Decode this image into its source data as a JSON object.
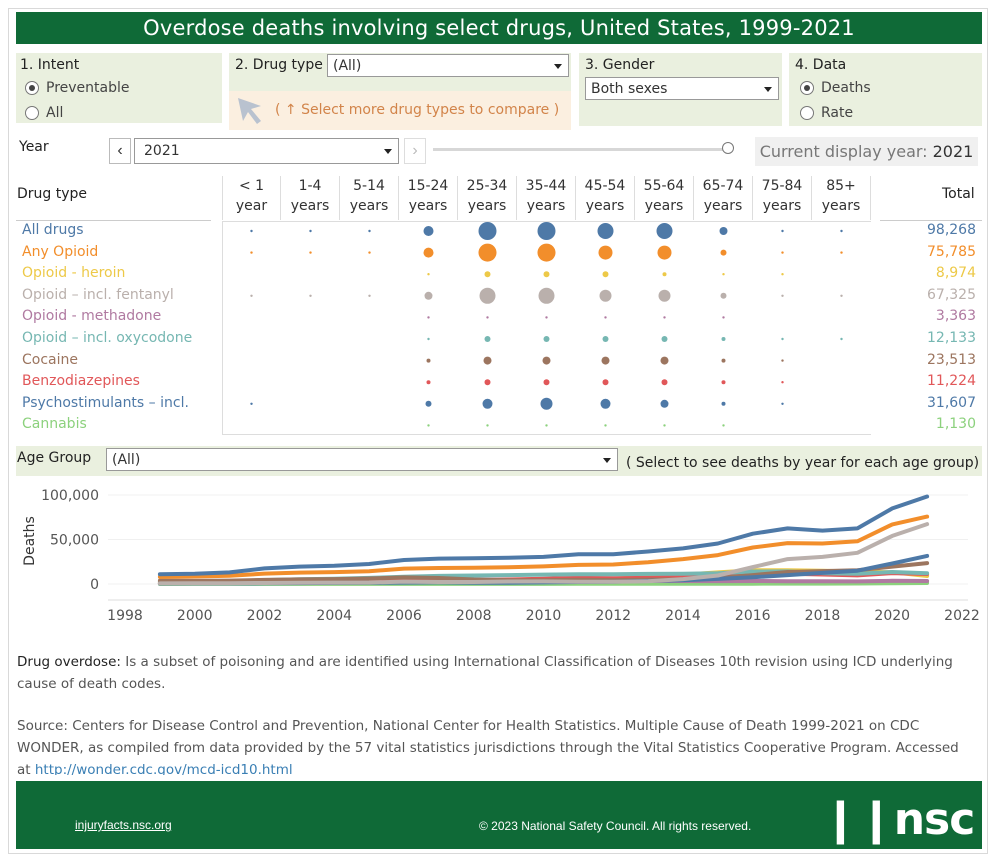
{
  "title": "Overdose deaths involving select drugs, United States, 1999-2021",
  "intent": {
    "label": "1. Intent",
    "options": [
      "Preventable",
      "All"
    ],
    "selected": "Preventable"
  },
  "drug_type_filter": {
    "label": "2. Drug type",
    "value": "(All)",
    "hint": "( ↑ Select more drug types to compare )"
  },
  "gender": {
    "label": "3. Gender",
    "value": "Both sexes"
  },
  "data_measure": {
    "label": "4. Data",
    "options": [
      "Deaths",
      "Rate"
    ],
    "selected": "Deaths"
  },
  "year_control": {
    "label": "Year",
    "value": "2021",
    "current_prefix": "Current display year:",
    "current_value": "2021",
    "slider_position": 1.0
  },
  "table": {
    "drug_type_header": "Drug type",
    "total_header": "Total",
    "age_columns": [
      {
        "l1": "< 1 year",
        "l2": ""
      },
      {
        "l1": "1-4",
        "l2": "years"
      },
      {
        "l1": "5-14",
        "l2": "years"
      },
      {
        "l1": "15-24",
        "l2": "years"
      },
      {
        "l1": "25-34",
        "l2": "years"
      },
      {
        "l1": "35-44",
        "l2": "years"
      },
      {
        "l1": "45-54",
        "l2": "years"
      },
      {
        "l1": "55-64",
        "l2": "years"
      },
      {
        "l1": "65-74",
        "l2": "years"
      },
      {
        "l1": "75-84",
        "l2": "years"
      },
      {
        "l1": "85+",
        "l2": "years"
      }
    ],
    "rows": [
      {
        "name": "All drugs",
        "color": "#4e79a7",
        "total": "98,268",
        "sizes": [
          1,
          1,
          1,
          5,
          9,
          9,
          8,
          8,
          4,
          1,
          1
        ]
      },
      {
        "name": "Any Opioid",
        "color": "#f28e2b",
        "total": "75,785",
        "sizes": [
          1,
          1,
          1,
          5,
          9,
          9,
          7,
          7,
          3,
          1,
          1
        ]
      },
      {
        "name": "Opioid - heroin",
        "color": "#edc948",
        "total": "8,974",
        "sizes": [
          0,
          0,
          0,
          1,
          3,
          3,
          3,
          2,
          1,
          1,
          0
        ]
      },
      {
        "name": "Opioid – incl. fentanyl",
        "color": "#bab0ac",
        "total": "67,325",
        "sizes": [
          1,
          1,
          1,
          4,
          8,
          8,
          6,
          6,
          3,
          1,
          1
        ]
      },
      {
        "name": "Opioid - methadone",
        "color": "#b07aa1",
        "total": "3,363",
        "sizes": [
          0,
          0,
          0,
          1,
          1,
          1,
          1,
          1,
          1,
          0,
          0
        ]
      },
      {
        "name": "Opioid – incl. oxycodone",
        "color": "#76b7b2",
        "total": "12,133",
        "sizes": [
          0,
          0,
          0,
          1,
          3,
          3,
          3,
          3,
          2,
          1,
          1
        ]
      },
      {
        "name": "Cocaine",
        "color": "#9c755f",
        "total": "23,513",
        "sizes": [
          0,
          0,
          0,
          2,
          4,
          4,
          4,
          4,
          2,
          1,
          0
        ]
      },
      {
        "name": "Benzodiazepines",
        "color": "#e15759",
        "total": "11,224",
        "sizes": [
          0,
          0,
          0,
          2,
          3,
          3,
          3,
          3,
          2,
          1,
          0
        ]
      },
      {
        "name": "Psychostimulants – incl.",
        "color": "#4e79a7",
        "total": "31,607",
        "sizes": [
          1,
          0,
          0,
          3,
          5,
          6,
          5,
          4,
          2,
          1,
          0
        ]
      },
      {
        "name": "Cannabis",
        "color": "#8cd17d",
        "total": "1,130",
        "sizes": [
          0,
          0,
          0,
          1,
          1,
          1,
          1,
          1,
          1,
          0,
          0
        ]
      }
    ]
  },
  "age_group": {
    "label": "Age Group",
    "value": "(All)",
    "hint": "( Select to see deaths by year for each age group)"
  },
  "chart_data": {
    "type": "line",
    "ylabel": "Deaths",
    "xlim": [
      1998,
      2022
    ],
    "ylim": [
      0,
      100000
    ],
    "x_ticks": [
      1998,
      2000,
      2002,
      2004,
      2006,
      2008,
      2010,
      2012,
      2014,
      2016,
      2018,
      2020,
      2022
    ],
    "y_ticks": [
      {
        "value": 0,
        "label": "0"
      },
      {
        "value": 50000,
        "label": "50,000"
      },
      {
        "value": 100000,
        "label": "100,000"
      }
    ],
    "x": [
      1999,
      2000,
      2001,
      2002,
      2003,
      2004,
      2005,
      2006,
      2007,
      2008,
      2009,
      2010,
      2011,
      2012,
      2013,
      2014,
      2015,
      2016,
      2017,
      2018,
      2019,
      2020,
      2021
    ],
    "series": [
      {
        "name": "All drugs",
        "color": "#4e79a7",
        "values": [
          11000,
          11500,
          13000,
          17500,
          19500,
          20500,
          22500,
          27000,
          28500,
          29000,
          29500,
          30500,
          33500,
          33500,
          36500,
          40000,
          45500,
          56500,
          62500,
          60000,
          62500,
          85000,
          98268
        ]
      },
      {
        "name": "Any Opioid",
        "color": "#f28e2b",
        "values": [
          8000,
          8400,
          9200,
          11700,
          12800,
          13400,
          14300,
          17300,
          18000,
          18200,
          18800,
          19800,
          21500,
          21900,
          24500,
          28000,
          32500,
          41000,
          46000,
          45500,
          48000,
          67000,
          75785
        ]
      },
      {
        "name": "Opioid – incl. fentanyl",
        "color": "#bab0ac",
        "values": [
          700,
          750,
          900,
          1100,
          1300,
          1600,
          1700,
          2700,
          2200,
          2300,
          2800,
          2900,
          2600,
          2600,
          3000,
          5500,
          9500,
          19000,
          28000,
          30500,
          35000,
          54000,
          67325
        ]
      },
      {
        "name": "Psychostimulants – incl.",
        "color": "#4e79a7",
        "values": [
          500,
          550,
          600,
          800,
          1000,
          1200,
          1300,
          1600,
          1800,
          1300,
          1500,
          1800,
          2200,
          2600,
          3500,
          4300,
          5700,
          7500,
          10000,
          12500,
          15000,
          23000,
          31607
        ]
      },
      {
        "name": "Cocaine",
        "color": "#9c755f",
        "values": [
          3800,
          3500,
          3800,
          4600,
          5200,
          5500,
          6200,
          7400,
          6700,
          5100,
          4300,
          4200,
          4700,
          4400,
          4900,
          5400,
          6700,
          10000,
          13500,
          14500,
          15500,
          19500,
          23513
        ]
      },
      {
        "name": "Opioid – incl. oxycodone",
        "color": "#76b7b2",
        "values": [
          2700,
          2900,
          3300,
          4400,
          5300,
          6000,
          6800,
          8200,
          9100,
          9600,
          10000,
          10600,
          11000,
          10900,
          11300,
          11500,
          12000,
          14000,
          14200,
          12000,
          11500,
          13500,
          12133
        ]
      },
      {
        "name": "Benzodiazepines",
        "color": "#e15759",
        "values": [
          1100,
          1200,
          1500,
          2000,
          2300,
          2600,
          3000,
          3600,
          4000,
          4200,
          5000,
          5800,
          6800,
          6500,
          6900,
          7900,
          8700,
          10600,
          11500,
          10700,
          9700,
          12300,
          11224
        ]
      },
      {
        "name": "Opioid - heroin",
        "color": "#edc948",
        "values": [
          1900,
          1800,
          1800,
          2100,
          2000,
          1900,
          2000,
          2100,
          2400,
          3000,
          3300,
          3000,
          4400,
          5900,
          8300,
          10600,
          13000,
          15500,
          15500,
          15000,
          14000,
          13200,
          8974
        ]
      },
      {
        "name": "Opioid - methadone",
        "color": "#b07aa1",
        "values": [
          800,
          1000,
          1400,
          2400,
          2900,
          3800,
          4500,
          5400,
          5500,
          4900,
          4600,
          4500,
          4200,
          3100,
          3500,
          3400,
          3300,
          3400,
          3200,
          3000,
          2900,
          3600,
          3363
        ]
      },
      {
        "name": "Cannabis",
        "color": "#8cd17d",
        "values": [
          50,
          60,
          70,
          80,
          90,
          100,
          110,
          120,
          130,
          140,
          150,
          160,
          170,
          180,
          200,
          250,
          300,
          350,
          400,
          500,
          600,
          900,
          1130
        ]
      }
    ]
  },
  "notes": {
    "definition_label": "Drug overdose:",
    "definition_text": "Is a subset of poisoning and are identified using International Classification of Diseases 10th revision using ICD underlying cause of death codes.",
    "source_label": "Source:",
    "source_text": "Centers for Disease Control and Prevention, National Center for Health Statistics. Multiple Cause of Death 1999-2021 on CDC WONDER, as compiled from data provided by the 57 vital statistics jurisdictions through the Vital Statistics Cooperative Program.",
    "accessed_prefix": "Accessed at",
    "accessed_url": "http://wonder.cdc.gov/mcd-icd10.html"
  },
  "footer": {
    "site": "injuryfacts.nsc.org",
    "copyright": "© 2023 National Safety Council. All rights reserved.",
    "logo": "❙❙nsc"
  },
  "colors": {
    "brand_green": "#0f6a37",
    "panel_bg": "#eaf0df",
    "hint_bg": "#fbefe0",
    "hint_text": "#d2844a"
  }
}
